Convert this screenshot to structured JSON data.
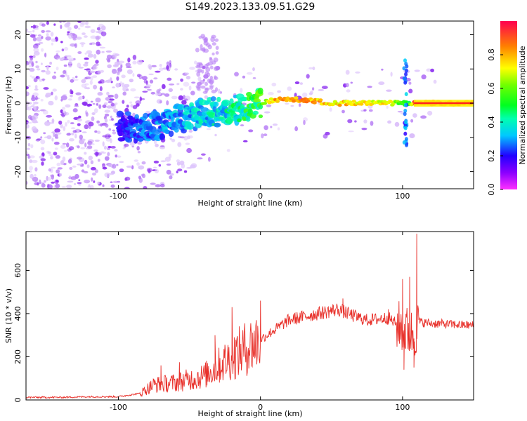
{
  "figure_title": "S149.2023.133.09.51.G29",
  "colors": {
    "snr_line": "#e8302a",
    "spectrogram_dots": "#8b2cf0",
    "trace_peak": "#ff2020"
  },
  "chart_data": [
    {
      "type": "heatmap",
      "panel": "spectrogram",
      "xlabel": "Height of straight line (km)",
      "ylabel": "Frequency (Hz)",
      "xlim": [
        -165,
        150
      ],
      "ylim": [
        -25,
        24
      ],
      "x_ticks": [
        -100,
        0,
        100
      ],
      "y_ticks": [
        -20,
        -10,
        0,
        10,
        20
      ],
      "colorbar": {
        "label": "Normalized spectral amplitude",
        "range": [
          0,
          1
        ],
        "ticks": [
          0.0,
          0.2,
          0.4,
          0.6,
          0.8
        ],
        "colormap": "hsv-rainbow"
      },
      "ridge": {
        "description": "frequency ridge of the dominant signal",
        "x": [
          -100,
          -80,
          -60,
          -40,
          -20,
          0,
          10,
          30,
          50,
          70,
          90,
          100,
          104,
          108,
          150
        ],
        "y": [
          -7,
          -7,
          -5,
          -3,
          -2,
          0,
          1,
          1,
          0,
          0,
          0,
          0,
          0,
          0,
          0
        ],
        "amplitude": [
          0.22,
          0.3,
          0.35,
          0.4,
          0.45,
          0.6,
          0.85,
          0.85,
          0.8,
          0.8,
          0.75,
          0.55,
          0.5,
          0.95,
          0.95
        ]
      }
    },
    {
      "type": "line",
      "panel": "snr",
      "xlabel": "Height of straight line (km)",
      "ylabel": "SNR (10 * v/v)",
      "xlim": [
        -165,
        150
      ],
      "ylim": [
        0,
        780
      ],
      "x_ticks": [
        -100,
        0,
        100
      ],
      "y_ticks": [
        0,
        200,
        400,
        600
      ],
      "series": [
        {
          "name": "SNR",
          "x": [
            -165,
            -140,
            -120,
            -100,
            -85,
            -75,
            -60,
            -40,
            -20,
            0,
            20,
            40,
            55,
            65,
            75,
            90,
            100,
            105,
            108,
            112,
            120,
            150
          ],
          "values": [
            12,
            12,
            15,
            15,
            30,
            70,
            80,
            110,
            200,
            280,
            370,
            400,
            420,
            390,
            370,
            380,
            330,
            310,
            300,
            360,
            355,
            345
          ],
          "spikes": [
            {
              "x": -70,
              "value": 160
            },
            {
              "x": -57,
              "value": 175
            },
            {
              "x": -32,
              "value": 300
            },
            {
              "x": -20,
              "value": 430
            },
            {
              "x": 0,
              "value": 460
            },
            {
              "x": 58,
              "value": 470
            },
            {
              "x": 90,
              "value": 420
            },
            {
              "x": 100,
              "value": 560
            },
            {
              "x": 105,
              "value": 570
            },
            {
              "x": 110,
              "value": 770
            },
            {
              "x": 108,
              "value": 150
            },
            {
              "x": 101,
              "value": 140
            }
          ]
        }
      ]
    }
  ]
}
